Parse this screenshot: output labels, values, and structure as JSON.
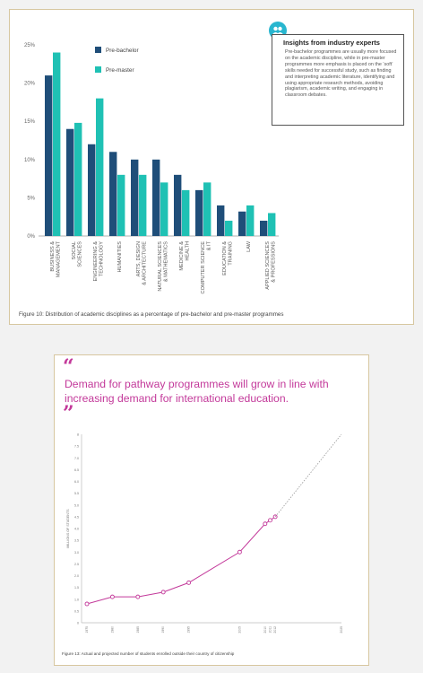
{
  "fig10": {
    "caption": "Figure 10: Distribution of academic disciplines as a percentage of pre-bachelor and pre-master programmes",
    "insight_title": "Insights from industry experts",
    "insight_body": "Pre-bachelor programmes are usually more focused on the academic discipline, while in pre-master programmes more emphasis is placed on the ‘soft’ skills needed for successful study, such as finding and interpreting academic literature, identifying and using appropriate research methods, avoiding plagiarism, academic writing, and engaging in classroom debates.",
    "icon": "people-icon",
    "colors": {
      "pre_bachelor": "#1f4e79",
      "pre_master": "#1fc1b4"
    }
  },
  "fig13": {
    "quote": "Demand for pathway programmes will grow in line with increasing demand for international education.",
    "caption": "Figure 13: Actual and projected number of students enrolled outside their country of citizenship",
    "color": "#c3399a"
  },
  "chart_data": [
    {
      "type": "bar",
      "categories": [
        "BUSINESS & MANAGEMENT",
        "SOCIAL SCIENCES",
        "ENGINEERING & TECHNOLOGY",
        "HUMANITIES",
        "ARTS, DESIGN & ARCHITECTURE",
        "NATURAL SCIENCES & MATHEMATICS",
        "MEDICINE & HEALTH",
        "COMPUTER SCIENCE & IT",
        "EDUCATION & TRAINING",
        "LAW",
        "APPLIED SCIENCES & PROFESSIONS"
      ],
      "series": [
        {
          "name": "Pre-bachelor",
          "values": [
            21,
            14,
            12,
            11,
            10,
            10,
            8,
            6,
            4,
            3.2,
            2
          ]
        },
        {
          "name": "Pre-master",
          "values": [
            24,
            14.8,
            18,
            8,
            8,
            7,
            6,
            7,
            2,
            4,
            3
          ]
        }
      ],
      "yticks": [
        "0%",
        "5%",
        "10%",
        "15%",
        "20%",
        "25%"
      ],
      "ylim": [
        0,
        25
      ],
      "grid": false,
      "legend": "top-center"
    },
    {
      "type": "line",
      "ylabel": "MILLIONS OF STUDENTS",
      "x_tick_labels": [
        "1975",
        "1980",
        "1985",
        "1990",
        "1995",
        "2005",
        "2010",
        "2011",
        "2012",
        "2025"
      ],
      "y_tick_labels": [
        "0",
        "0.5",
        "1.0",
        "1.5",
        "2.0",
        "2.5",
        "3.0",
        "3.5",
        "4.0",
        "4.5",
        "5.0",
        "5.5",
        "6.0",
        "6.5",
        "7.0",
        "7.5",
        "8"
      ],
      "ylim": [
        0,
        8
      ],
      "series": [
        {
          "values": [
            0.8,
            1.1,
            1.1,
            1.3,
            1.7,
            3.0,
            4.2,
            4.35,
            4.5
          ],
          "style": "solid-with-markers"
        },
        {
          "values_projected": [
            [
              2012,
              4.5
            ],
            [
              2025,
              8.0
            ]
          ],
          "style": "dotted"
        }
      ],
      "x": [
        1975,
        1980,
        1985,
        1990,
        1995,
        2005,
        2010,
        2011,
        2012
      ],
      "grid": false
    }
  ]
}
